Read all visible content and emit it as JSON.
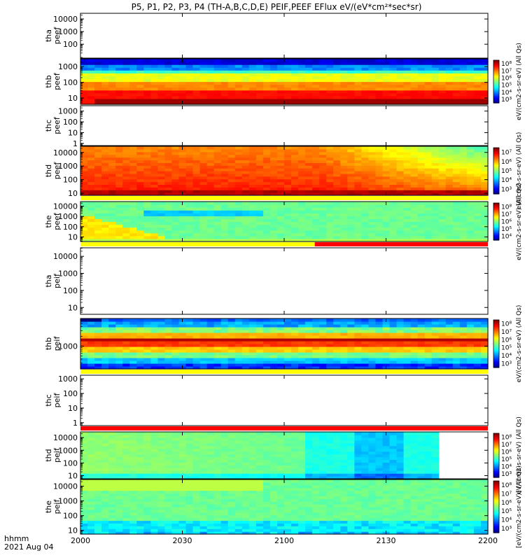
{
  "title": "P5, P1, P2, P3, P4 (TH-A,B,C,D,E) PEIF,PEEF EFlux eV/(eV*cm²*sec*sr)",
  "footer": {
    "time_label": "hhmm",
    "date_label": "2021 Aug 04"
  },
  "colors": {
    "axis": "#000000",
    "empty": "#ffffff"
  },
  "chart_data": {
    "type": "heatmap",
    "x": {
      "unit": "hhmm",
      "start": "2000",
      "end": "2200",
      "ticks": [
        "2000",
        "2030",
        "2100",
        "2130",
        "2200"
      ]
    },
    "panels": [
      {
        "id": "tha-peef",
        "ylabel": [
          "tha",
          "peef"
        ],
        "yticks": [
          "10000",
          "1000",
          "100"
        ],
        "has_data": false,
        "log_ymin": 0.9,
        "log_ymax": 4.45,
        "bar": null
      },
      {
        "id": "thb-peef",
        "ylabel": [
          "thb",
          "peef"
        ],
        "yticks": [
          "1000",
          "100",
          "10"
        ],
        "has_data": true,
        "pattern": "thb-peef",
        "log_ymin": 0.6,
        "log_ymax": 3.5,
        "colorbar": {
          "ticks": [
            "10⁸",
            "10⁷",
            "10⁶",
            "10⁵",
            "10⁴",
            "10³"
          ],
          "label": "eV/(cm2-s-sr-eV) (All Qs)"
        },
        "bar": null
      },
      {
        "id": "thc-peef",
        "ylabel": [
          "thc",
          "peef"
        ],
        "yticks": [
          "1000",
          "100",
          "10",
          "1"
        ],
        "has_data": false,
        "log_ymin": -0.2,
        "log_ymax": 3.5,
        "bar": null
      },
      {
        "id": "thd-peef",
        "ylabel": [
          "thd",
          "peef"
        ],
        "yticks": [
          "10000",
          "1000",
          "100",
          "10"
        ],
        "has_data": true,
        "pattern": "thd-peef",
        "log_ymin": 0.85,
        "log_ymax": 4.45,
        "colorbar": {
          "ticks": [
            "10⁷",
            "10⁶",
            "10⁵",
            "10⁴",
            "10³"
          ],
          "label": "eV/(cm2-s-sr-eV) (All Qs)"
        },
        "bar": null
      },
      {
        "id": "the-peef",
        "ylabel": [
          "the",
          "peef"
        ],
        "yticks": [
          "10000",
          "1000",
          "100",
          "10"
        ],
        "has_data": true,
        "pattern": "the-peef",
        "log_ymin": 0.55,
        "log_ymax": 4.45,
        "colorbar": {
          "ticks": [
            "10⁸",
            "10⁷",
            "10⁶",
            "10⁵",
            "10⁴"
          ],
          "label": "eV/(cm2-s-sr-eV) (All Qs)"
        },
        "bar": {
          "segments": [
            {
              "from": 0,
              "to": 1,
              "color": "#ffff00"
            }
          ]
        }
      },
      {
        "id": "tha-peif",
        "ylabel": [
          "tha",
          "peif"
        ],
        "yticks": [
          "10000",
          "1000",
          "100",
          "10"
        ],
        "has_data": false,
        "log_ymin": 0.6,
        "log_ymax": 4.5,
        "bar": {
          "segments": [
            {
              "from": 0,
              "to": 0.575,
              "color": "#ffff00"
            },
            {
              "from": 0.575,
              "to": 1,
              "color": "#ff0000"
            }
          ]
        }
      },
      {
        "id": "thb-peif",
        "ylabel": [
          "thb",
          "peif"
        ],
        "yticks": [
          "1000"
        ],
        "has_data": true,
        "pattern": "thb-peif",
        "log_ymin": 2.3,
        "log_ymax": 3.85,
        "colorbar": {
          "ticks": [
            "10⁸",
            "10⁷",
            "10⁶",
            "10⁵",
            "10⁴",
            "10³"
          ],
          "label": "eV/(cm2-s-sr-eV) (All Qs)"
        },
        "bar": null
      },
      {
        "id": "thc-peif",
        "ylabel": [
          "thc",
          "peif"
        ],
        "yticks": [
          "1000",
          "100",
          "10",
          "1"
        ],
        "has_data": false,
        "log_ymin": -0.2,
        "log_ymax": 3.25,
        "bar": {
          "segments": [
            {
              "from": 0,
              "to": 1,
              "color": "#ffff00"
            }
          ]
        }
      },
      {
        "id": "thd-peif",
        "ylabel": [
          "thd",
          "peif"
        ],
        "yticks": [
          "10000",
          "1000",
          "100",
          "10"
        ],
        "has_data": true,
        "pattern": "thd-peif",
        "log_ymin": 0.75,
        "log_ymax": 4.45,
        "colorbar": {
          "ticks": [
            "10⁸",
            "10⁷",
            "10⁶",
            "10⁵",
            "10⁴",
            "10³"
          ],
          "label": "eV/(cm2-s-sr-eV) (All Qs)"
        },
        "bar": {
          "segments": [
            {
              "from": 0,
              "to": 1,
              "color": "#ff0000"
            }
          ]
        }
      },
      {
        "id": "the-peif",
        "ylabel": [
          "the",
          "peif"
        ],
        "yticks": [
          "10000",
          "1000",
          "100",
          "10"
        ],
        "has_data": true,
        "pattern": "the-peif",
        "log_ymin": 0.75,
        "log_ymax": 4.45,
        "colorbar": {
          "ticks": [
            "10⁸",
            "10⁷",
            "10⁶",
            "10⁵",
            "10⁴",
            "10³"
          ],
          "label": "[eV/(cm2-s-sr-eV)] (All Qs)"
        },
        "bar": null
      }
    ]
  }
}
